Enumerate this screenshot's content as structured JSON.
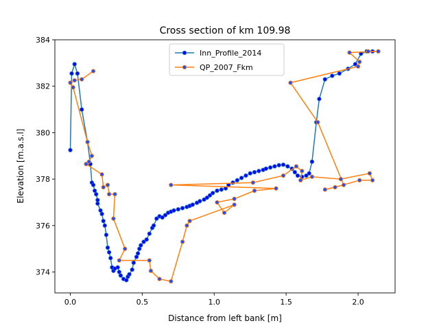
{
  "chart_data": {
    "type": "line",
    "title": "Cross section of km 109.98",
    "xlabel": "Distance from left bank [m]",
    "ylabel": "Elevation [m.a.s.l]",
    "xlim": [
      -0.107,
      2.257
    ],
    "ylim": [
      373.1,
      384.0
    ],
    "x_ticks": [
      "0.0",
      "0.5",
      "1.0",
      "1.5",
      "2.0"
    ],
    "x_tick_values": [
      0.0,
      0.5,
      1.0,
      1.5,
      2.0
    ],
    "y_ticks": [
      "374",
      "376",
      "378",
      "380",
      "382",
      "384"
    ],
    "y_tick_values": [
      374,
      376,
      378,
      380,
      382,
      384
    ],
    "grid": false,
    "legend_position": "top-center",
    "series": [
      {
        "name": "Inn_Profile_2014",
        "color": "#1f77b4",
        "marker": "circle",
        "marker_face": "#0000ff",
        "points": [
          [
            0.0,
            379.25
          ],
          [
            0.01,
            382.55
          ],
          [
            0.03,
            382.95
          ],
          [
            0.05,
            382.55
          ],
          [
            0.08,
            381.0
          ],
          [
            0.12,
            379.6
          ],
          [
            0.14,
            378.65
          ],
          [
            0.15,
            377.85
          ],
          [
            0.16,
            377.75
          ],
          [
            0.17,
            377.5
          ],
          [
            0.18,
            377.35
          ],
          [
            0.19,
            377.1
          ],
          [
            0.19,
            376.95
          ],
          [
            0.21,
            376.65
          ],
          [
            0.22,
            376.5
          ],
          [
            0.23,
            376.2
          ],
          [
            0.24,
            376.0
          ],
          [
            0.25,
            375.6
          ],
          [
            0.26,
            375.05
          ],
          [
            0.27,
            374.85
          ],
          [
            0.28,
            374.6
          ],
          [
            0.29,
            374.2
          ],
          [
            0.3,
            374.05
          ],
          [
            0.31,
            374.15
          ],
          [
            0.33,
            374.2
          ],
          [
            0.34,
            374.0
          ],
          [
            0.35,
            373.85
          ],
          [
            0.37,
            373.7
          ],
          [
            0.39,
            373.65
          ],
          [
            0.4,
            373.8
          ],
          [
            0.41,
            373.9
          ],
          [
            0.43,
            374.1
          ],
          [
            0.44,
            374.4
          ],
          [
            0.46,
            374.65
          ],
          [
            0.47,
            374.8
          ],
          [
            0.48,
            375.0
          ],
          [
            0.49,
            375.15
          ],
          [
            0.51,
            375.3
          ],
          [
            0.53,
            375.4
          ],
          [
            0.55,
            375.65
          ],
          [
            0.57,
            375.9
          ],
          [
            0.58,
            376.0
          ],
          [
            0.6,
            376.3
          ],
          [
            0.62,
            376.4
          ],
          [
            0.64,
            376.35
          ],
          [
            0.66,
            376.45
          ],
          [
            0.68,
            376.55
          ],
          [
            0.7,
            376.6
          ],
          [
            0.72,
            376.65
          ],
          [
            0.75,
            376.7
          ],
          [
            0.78,
            376.75
          ],
          [
            0.81,
            376.8
          ],
          [
            0.83,
            376.85
          ],
          [
            0.85,
            376.9
          ],
          [
            0.88,
            376.98
          ],
          [
            0.9,
            377.05
          ],
          [
            0.93,
            377.12
          ],
          [
            0.95,
            377.2
          ],
          [
            0.97,
            377.3
          ],
          [
            0.99,
            377.4
          ],
          [
            1.02,
            377.5
          ],
          [
            1.05,
            377.55
          ],
          [
            1.08,
            377.6
          ],
          [
            1.1,
            377.75
          ],
          [
            1.13,
            377.85
          ],
          [
            1.16,
            377.95
          ],
          [
            1.19,
            378.05
          ],
          [
            1.22,
            378.15
          ],
          [
            1.25,
            378.25
          ],
          [
            1.28,
            378.3
          ],
          [
            1.31,
            378.35
          ],
          [
            1.34,
            378.4
          ],
          [
            1.36,
            378.45
          ],
          [
            1.39,
            378.5
          ],
          [
            1.42,
            378.55
          ],
          [
            1.45,
            378.6
          ],
          [
            1.48,
            378.62
          ],
          [
            1.51,
            378.55
          ],
          [
            1.54,
            378.45
          ],
          [
            1.56,
            378.3
          ],
          [
            1.58,
            378.15
          ],
          [
            1.61,
            378.1
          ],
          [
            1.64,
            378.15
          ],
          [
            1.66,
            378.25
          ],
          [
            1.68,
            378.75
          ],
          [
            1.71,
            380.45
          ],
          [
            1.73,
            381.45
          ],
          [
            1.77,
            382.3
          ],
          [
            1.82,
            382.45
          ],
          [
            1.87,
            382.55
          ],
          [
            1.93,
            382.75
          ],
          [
            1.98,
            382.95
          ],
          [
            2.02,
            383.4
          ],
          [
            2.06,
            383.5
          ],
          [
            2.1,
            383.5
          ],
          [
            2.14,
            383.5
          ]
        ]
      },
      {
        "name": "QP_2007_Fkm",
        "color": "#ff7f0e",
        "marker": "circle",
        "marker_face": "#1f4fff",
        "points": [
          [
            0.16,
            382.65
          ],
          [
            0.08,
            382.3
          ],
          [
            0.03,
            382.25
          ],
          [
            0.0,
            382.15
          ],
          [
            0.02,
            381.95
          ],
          [
            0.12,
            379.6
          ],
          [
            0.15,
            379.0
          ],
          [
            0.13,
            378.75
          ],
          [
            0.11,
            378.65
          ],
          [
            0.22,
            378.2
          ],
          [
            0.23,
            377.65
          ],
          [
            0.26,
            377.75
          ],
          [
            0.27,
            377.35
          ],
          [
            0.31,
            377.35
          ],
          [
            0.3,
            376.3
          ],
          [
            0.38,
            375.0
          ],
          [
            0.34,
            374.5
          ],
          [
            0.55,
            374.5
          ],
          [
            0.56,
            374.05
          ],
          [
            0.62,
            373.7
          ],
          [
            0.7,
            373.6
          ],
          [
            0.78,
            375.3
          ],
          [
            0.81,
            376.0
          ],
          [
            0.83,
            376.2
          ],
          [
            1.14,
            376.9
          ],
          [
            1.07,
            376.55
          ],
          [
            1.02,
            377.0
          ],
          [
            1.14,
            377.15
          ],
          [
            1.28,
            377.5
          ],
          [
            1.43,
            377.6
          ],
          [
            0.7,
            377.75
          ],
          [
            1.27,
            377.85
          ],
          [
            1.48,
            378.15
          ],
          [
            1.57,
            378.55
          ],
          [
            1.61,
            378.35
          ],
          [
            1.6,
            377.95
          ],
          [
            1.68,
            378.1
          ],
          [
            1.88,
            378.0
          ],
          [
            2.08,
            378.25
          ],
          [
            2.1,
            377.95
          ],
          [
            2.01,
            377.95
          ],
          [
            1.84,
            377.65
          ],
          [
            1.77,
            377.55
          ],
          [
            1.9,
            377.75
          ],
          [
            1.72,
            380.45
          ],
          [
            1.53,
            382.15
          ],
          [
            2.0,
            382.85
          ],
          [
            2.01,
            383.05
          ],
          [
            1.94,
            383.45
          ],
          [
            2.14,
            383.5
          ],
          [
            2.07,
            383.5
          ]
        ]
      }
    ]
  }
}
